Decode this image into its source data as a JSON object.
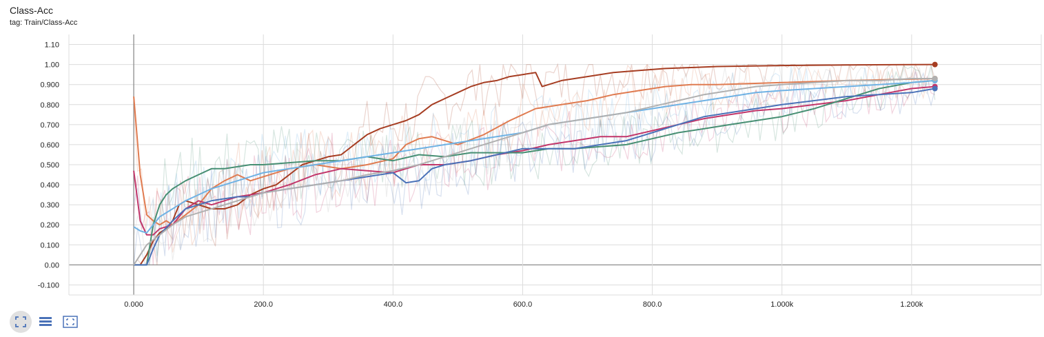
{
  "header": {
    "title": "Class-Acc",
    "tag": "tag: Train/Class-Acc"
  },
  "toolbar": [
    {
      "icon": "fit-domain-icon",
      "active": true
    },
    {
      "icon": "data-table-icon",
      "active": false
    },
    {
      "icon": "expand-chart-icon",
      "active": false
    }
  ],
  "chart_data": {
    "type": "line",
    "title": "Class-Acc",
    "subtitle": "tag: Train/Class-Acc",
    "xlim": [
      -100,
      1400
    ],
    "ylim": [
      -0.15,
      1.15
    ],
    "x_ticks": [
      0,
      200,
      400,
      600,
      800,
      1000,
      1200
    ],
    "x_tick_labels": [
      "0.000",
      "200.0",
      "400.0",
      "600.0",
      "800.0",
      "1.000k",
      "1.200k"
    ],
    "y_ticks": [
      -0.1,
      0,
      0.1,
      0.2,
      0.3,
      0.4,
      0.5,
      0.6,
      0.7,
      0.8,
      0.9,
      1.0,
      1.1
    ],
    "y_tick_labels": [
      "-0.100",
      "0.00",
      "0.100",
      "0.200",
      "0.300",
      "0.400",
      "0.500",
      "0.600",
      "0.700",
      "0.800",
      "0.900",
      "1.00",
      "1.10"
    ],
    "grid": true,
    "series": [
      {
        "color": "#a63d22",
        "x": [
          0,
          10,
          20,
          30,
          40,
          50,
          60,
          70,
          80,
          100,
          120,
          140,
          160,
          180,
          200,
          220,
          240,
          260,
          280,
          300,
          320,
          340,
          360,
          380,
          400,
          420,
          440,
          460,
          480,
          500,
          520,
          540,
          560,
          580,
          600,
          620,
          630,
          640,
          660,
          680,
          700,
          740,
          780,
          820,
          860,
          900,
          1000,
          1100,
          1236
        ],
        "y": [
          0,
          0,
          0.05,
          0.12,
          0.16,
          0.18,
          0.22,
          0.3,
          0.32,
          0.3,
          0.28,
          0.28,
          0.3,
          0.35,
          0.38,
          0.4,
          0.45,
          0.5,
          0.52,
          0.54,
          0.55,
          0.6,
          0.65,
          0.68,
          0.7,
          0.72,
          0.75,
          0.8,
          0.83,
          0.86,
          0.89,
          0.91,
          0.92,
          0.94,
          0.95,
          0.96,
          0.89,
          0.9,
          0.92,
          0.93,
          0.94,
          0.96,
          0.97,
          0.98,
          0.985,
          0.99,
          0.995,
          0.998,
          1.0
        ]
      },
      {
        "color": "#e07b50",
        "x": [
          0,
          10,
          20,
          30,
          40,
          50,
          60,
          80,
          100,
          120,
          140,
          160,
          180,
          200,
          240,
          280,
          320,
          360,
          400,
          420,
          440,
          460,
          480,
          500,
          540,
          580,
          620,
          660,
          700,
          740,
          780,
          820,
          860,
          900,
          1000,
          1100,
          1236
        ],
        "y": [
          0.84,
          0.45,
          0.25,
          0.22,
          0.2,
          0.22,
          0.2,
          0.25,
          0.3,
          0.38,
          0.42,
          0.45,
          0.42,
          0.44,
          0.48,
          0.5,
          0.48,
          0.5,
          0.53,
          0.6,
          0.63,
          0.64,
          0.62,
          0.6,
          0.65,
          0.72,
          0.78,
          0.8,
          0.82,
          0.85,
          0.87,
          0.89,
          0.9,
          0.9,
          0.91,
          0.92,
          0.93
        ]
      },
      {
        "color": "#c2366a",
        "x": [
          0,
          10,
          20,
          30,
          40,
          60,
          80,
          100,
          120,
          140,
          160,
          180,
          200,
          240,
          280,
          320,
          360,
          400,
          440,
          480,
          520,
          560,
          600,
          640,
          680,
          720,
          760,
          800,
          840,
          880,
          920,
          960,
          1000,
          1050,
          1100,
          1150,
          1200,
          1236
        ],
        "y": [
          0.47,
          0.22,
          0.15,
          0.15,
          0.18,
          0.2,
          0.28,
          0.32,
          0.3,
          0.32,
          0.34,
          0.35,
          0.36,
          0.4,
          0.45,
          0.48,
          0.47,
          0.46,
          0.5,
          0.5,
          0.52,
          0.55,
          0.57,
          0.6,
          0.62,
          0.64,
          0.64,
          0.67,
          0.7,
          0.73,
          0.75,
          0.77,
          0.78,
          0.8,
          0.82,
          0.85,
          0.88,
          0.89
        ]
      },
      {
        "color": "#478f73",
        "x": [
          0,
          10,
          20,
          30,
          40,
          50,
          60,
          80,
          100,
          120,
          140,
          160,
          180,
          200,
          240,
          280,
          320,
          360,
          400,
          440,
          480,
          520,
          560,
          600,
          640,
          680,
          720,
          760,
          800,
          840,
          880,
          920,
          960,
          1000,
          1050,
          1100,
          1150,
          1200,
          1236
        ],
        "y": [
          0,
          0,
          0,
          0.2,
          0.3,
          0.35,
          0.38,
          0.42,
          0.45,
          0.48,
          0.48,
          0.49,
          0.5,
          0.5,
          0.51,
          0.52,
          0.52,
          0.54,
          0.52,
          0.55,
          0.54,
          0.56,
          0.56,
          0.56,
          0.58,
          0.58,
          0.59,
          0.6,
          0.63,
          0.66,
          0.68,
          0.7,
          0.72,
          0.74,
          0.78,
          0.83,
          0.88,
          0.91,
          0.92
        ]
      },
      {
        "color": "#4a72b8",
        "x": [
          0,
          10,
          20,
          30,
          40,
          60,
          80,
          100,
          120,
          140,
          160,
          180,
          200,
          240,
          280,
          320,
          360,
          400,
          420,
          440,
          460,
          480,
          520,
          560,
          600,
          640,
          680,
          720,
          760,
          800,
          840,
          880,
          920,
          960,
          1000,
          1050,
          1100,
          1150,
          1200,
          1236
        ],
        "y": [
          0,
          0,
          0,
          0.08,
          0.15,
          0.22,
          0.28,
          0.3,
          0.32,
          0.33,
          0.34,
          0.34,
          0.36,
          0.38,
          0.4,
          0.42,
          0.44,
          0.46,
          0.41,
          0.42,
          0.48,
          0.5,
          0.52,
          0.55,
          0.58,
          0.58,
          0.58,
          0.6,
          0.62,
          0.66,
          0.7,
          0.74,
          0.76,
          0.78,
          0.8,
          0.82,
          0.84,
          0.85,
          0.86,
          0.88
        ]
      },
      {
        "color": "#6fb2e4",
        "x": [
          0,
          10,
          20,
          30,
          40,
          60,
          80,
          100,
          120,
          140,
          160,
          180,
          200,
          240,
          280,
          320,
          360,
          400,
          440,
          480,
          520,
          560,
          600,
          640,
          680,
          720,
          760,
          800,
          840,
          880,
          920,
          960,
          1000,
          1050,
          1100,
          1150,
          1200,
          1236
        ],
        "y": [
          0.19,
          0.17,
          0.16,
          0.2,
          0.24,
          0.28,
          0.32,
          0.35,
          0.38,
          0.4,
          0.42,
          0.44,
          0.46,
          0.48,
          0.5,
          0.52,
          0.54,
          0.56,
          0.58,
          0.6,
          0.62,
          0.64,
          0.66,
          0.7,
          0.72,
          0.74,
          0.76,
          0.78,
          0.8,
          0.82,
          0.84,
          0.86,
          0.87,
          0.88,
          0.89,
          0.9,
          0.91,
          0.92
        ]
      },
      {
        "color": "#b0b0b0",
        "x": [
          0,
          20,
          40,
          60,
          80,
          100,
          140,
          180,
          200,
          240,
          280,
          320,
          360,
          400,
          440,
          480,
          520,
          560,
          600,
          640,
          680,
          720,
          760,
          800,
          840,
          880,
          920,
          960,
          1000,
          1050,
          1100,
          1150,
          1200,
          1236
        ],
        "y": [
          0,
          0.1,
          0.15,
          0.2,
          0.24,
          0.26,
          0.3,
          0.34,
          0.36,
          0.38,
          0.4,
          0.42,
          0.45,
          0.47,
          0.5,
          0.54,
          0.58,
          0.62,
          0.66,
          0.7,
          0.72,
          0.74,
          0.76,
          0.79,
          0.82,
          0.85,
          0.87,
          0.89,
          0.9,
          0.91,
          0.92,
          0.92,
          0.93,
          0.93
        ]
      }
    ]
  }
}
